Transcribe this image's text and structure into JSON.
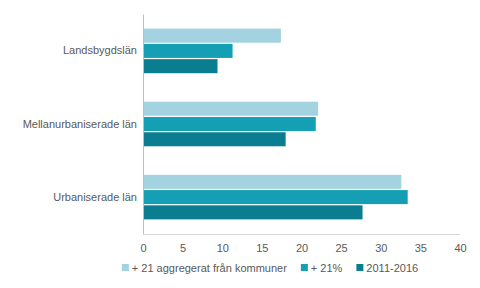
{
  "chart_data": {
    "type": "bar",
    "orientation": "horizontal",
    "categories": [
      "Landsbygdslän",
      "Mellanurbaniserade län",
      "Urbaniserade län"
    ],
    "series": [
      {
        "name": "+ 21 aggregerat från kommuner",
        "color": "#a3d3e0",
        "values": [
          17.4,
          22.1,
          32.6
        ]
      },
      {
        "name": "+ 21%",
        "color": "#159fb4",
        "values": [
          11.3,
          21.8,
          33.4
        ]
      },
      {
        "name": "2011-2016",
        "color": "#0b7d90",
        "values": [
          9.4,
          18.0,
          27.7
        ]
      }
    ],
    "xlim": [
      0,
      40
    ],
    "xticks": [
      0,
      5,
      10,
      15,
      20,
      25,
      30,
      35,
      40
    ],
    "grid": false,
    "legend": "bottom"
  }
}
